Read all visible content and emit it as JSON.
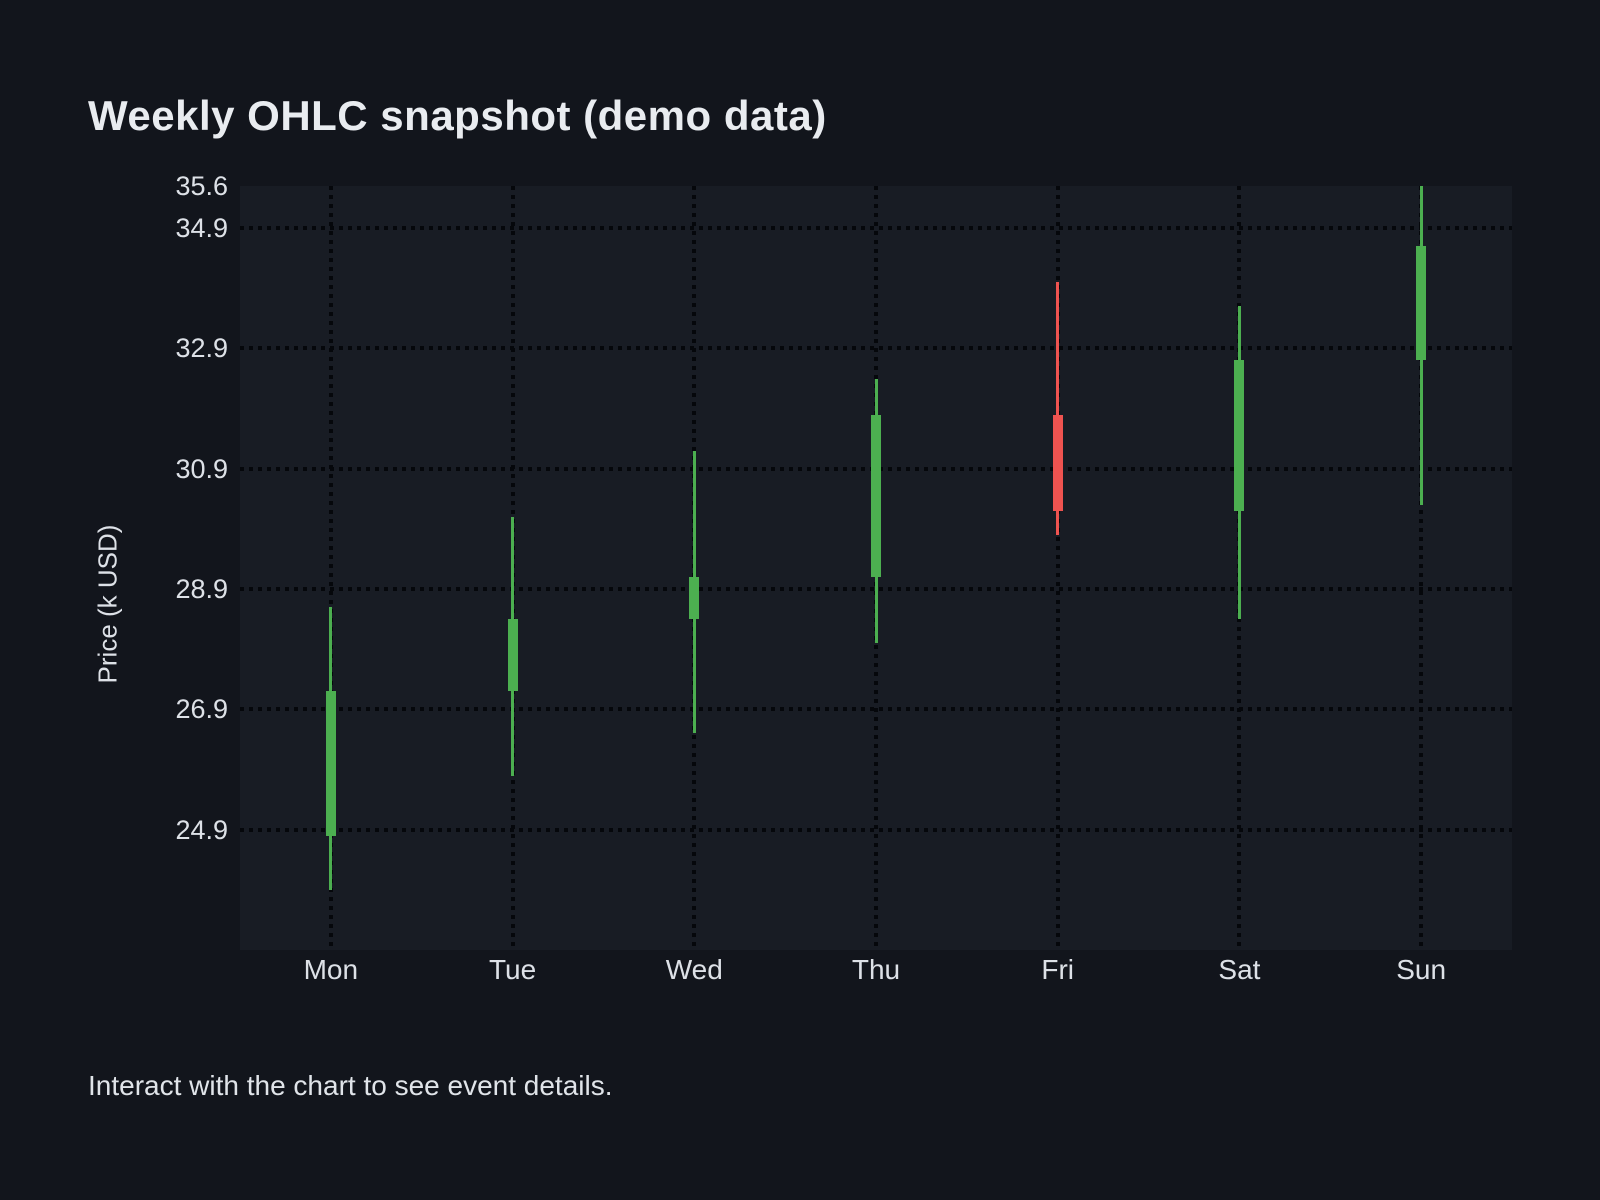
{
  "page": {
    "title": "Weekly OHLC snapshot (demo data)",
    "caption": "Interact with the chart to see event details."
  },
  "colors": {
    "background": "#12151c",
    "plot_background": "#181c24",
    "grid": "#05070b",
    "up": "#4caf50",
    "down": "#ef5350",
    "title_text": "#e9ecf0",
    "axis_text": "#dde1e7"
  },
  "chart_data": {
    "type": "candlestick",
    "title": "Weekly OHLC snapshot (demo data)",
    "categories": [
      "Mon",
      "Tue",
      "Wed",
      "Thu",
      "Fri",
      "Sat",
      "Sun"
    ],
    "values": [
      {
        "open": 24.8,
        "high": 28.6,
        "low": 23.9,
        "close": 27.2,
        "direction": "up"
      },
      {
        "open": 27.2,
        "high": 30.1,
        "low": 25.8,
        "close": 28.4,
        "direction": "up"
      },
      {
        "open": 28.4,
        "high": 31.2,
        "low": 26.5,
        "close": 29.1,
        "direction": "up"
      },
      {
        "open": 29.1,
        "high": 32.4,
        "low": 28.0,
        "close": 31.8,
        "direction": "up"
      },
      {
        "open": 31.8,
        "high": 34.0,
        "low": 29.8,
        "close": 30.2,
        "direction": "down"
      },
      {
        "open": 30.2,
        "high": 33.6,
        "low": 28.4,
        "close": 32.7,
        "direction": "up"
      },
      {
        "open": 32.7,
        "high": 35.6,
        "low": 30.3,
        "close": 34.6,
        "direction": "up"
      }
    ],
    "xlabel": "",
    "ylabel": "Price (k USD)",
    "ylim": [
      22.9,
      35.6
    ],
    "y_ticks": [
      35.6,
      34.9,
      32.9,
      30.9,
      28.9,
      26.9,
      24.9
    ],
    "grid": "dotted",
    "legend": "none"
  }
}
